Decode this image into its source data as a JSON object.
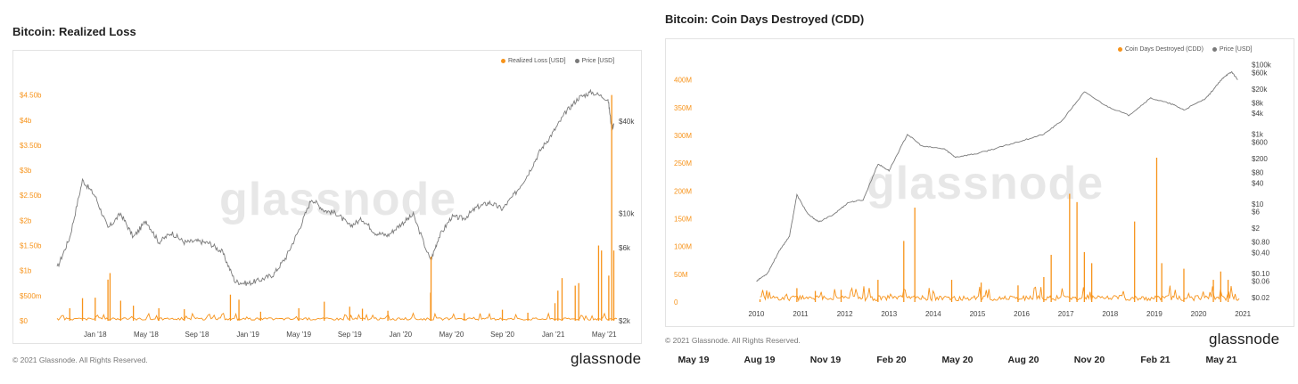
{
  "left": {
    "title": "Bitcoin: Realized Loss",
    "watermark": "glassnode",
    "copyright": "© 2021 Glassnode. All Rights Reserved.",
    "brand": "glassnode",
    "legend": [
      {
        "label": "Realized Loss [USD]",
        "color": "#f7931a"
      },
      {
        "label": "Price [USD]",
        "color": "#7a7a7a"
      }
    ]
  },
  "right": {
    "title": "Bitcoin: Coin Days Destroyed (CDD)",
    "watermark": "glassnode",
    "copyright": "© 2021 Glassnode. All Rights Reserved.",
    "brand": "glassnode",
    "legend": [
      {
        "label": "Coin Days Destroyed (CDD)",
        "color": "#f7931a"
      },
      {
        "label": "Price [USD]",
        "color": "#7a7a7a"
      }
    ]
  },
  "bottom_axis": [
    "May 19",
    "Aug 19",
    "Nov 19",
    "Feb 20",
    "May 20",
    "Aug 20",
    "Nov 20",
    "Feb 21",
    "May 21"
  ],
  "chart_data": [
    {
      "type": "line",
      "title": "Bitcoin: Realized Loss",
      "x_range": [
        "2017-10",
        "2021-06"
      ],
      "x_ticks": [
        "Jan '18",
        "May '18",
        "Sep '18",
        "Jan '19",
        "May '19",
        "Sep '19",
        "Jan '20",
        "May '20",
        "Sep '20",
        "Jan '21",
        "May '21"
      ],
      "y_left_ticks": [
        "$0",
        "$500m",
        "$1b",
        "$1.50b",
        "$2b",
        "$2.50b",
        "$3b",
        "$3.50b",
        "$4b",
        "$4.50b"
      ],
      "y_left_range": [
        0,
        4600000000.0
      ],
      "y_right_ticks": [
        "$2k",
        "$6k",
        "$10k",
        "$40k"
      ],
      "y_right_scale": "log",
      "y_right_range": [
        2000,
        64000
      ],
      "grid": false,
      "legend_position": "top-right",
      "series": [
        {
          "name": "Realized Loss [USD]",
          "color": "#f7931a",
          "axis": "left",
          "baseline": 40000000.0,
          "spikes": [
            {
              "date": "2017-11",
              "value": 250000000.0
            },
            {
              "date": "2017-12",
              "value": 450000000.0
            },
            {
              "date": "2018-01",
              "value": 460000000.0
            },
            {
              "date": "2018-02",
              "value": 820000000.0
            },
            {
              "date": "2018-02-06",
              "value": 950000000.0
            },
            {
              "date": "2018-03",
              "value": 400000000.0
            },
            {
              "date": "2018-04",
              "value": 300000000.0
            },
            {
              "date": "2018-06",
              "value": 250000000.0
            },
            {
              "date": "2018-08",
              "value": 230000000.0
            },
            {
              "date": "2018-11-20",
              "value": 520000000.0
            },
            {
              "date": "2018-12-10",
              "value": 420000000.0
            },
            {
              "date": "2019-02",
              "value": 180000000.0
            },
            {
              "date": "2019-05",
              "value": 250000000.0
            },
            {
              "date": "2019-07",
              "value": 380000000.0
            },
            {
              "date": "2019-09",
              "value": 280000000.0
            },
            {
              "date": "2019-10",
              "value": 240000000.0
            },
            {
              "date": "2019-12",
              "value": 200000000.0
            },
            {
              "date": "2020-03-12",
              "value": 560000000.0
            },
            {
              "date": "2020-03-13",
              "value": 1280000000.0
            },
            {
              "date": "2020-06",
              "value": 150000000.0
            },
            {
              "date": "2020-09",
              "value": 220000000.0
            },
            {
              "date": "2020-11",
              "value": 160000000.0
            },
            {
              "date": "2021-01-05",
              "value": 350000000.0
            },
            {
              "date": "2021-01-12",
              "value": 600000000.0
            },
            {
              "date": "2021-01-22",
              "value": 850000000.0
            },
            {
              "date": "2021-02-23",
              "value": 700000000.0
            },
            {
              "date": "2021-03",
              "value": 750000000.0
            },
            {
              "date": "2021-04-18",
              "value": 1500000000.0
            },
            {
              "date": "2021-04-25",
              "value": 1400000000.0
            },
            {
              "date": "2021-05-12",
              "value": 900000000.0
            },
            {
              "date": "2021-05-19",
              "value": 4500000000.0
            },
            {
              "date": "2021-05-24",
              "value": 1400000000.0
            }
          ]
        },
        {
          "name": "Price [USD]",
          "color": "#7a7a7a",
          "axis": "right",
          "points": [
            {
              "date": "2017-10",
              "value": 4400
            },
            {
              "date": "2017-11",
              "value": 7000
            },
            {
              "date": "2017-12",
              "value": 16500
            },
            {
              "date": "2018-01",
              "value": 13000
            },
            {
              "date": "2018-02",
              "value": 8000
            },
            {
              "date": "2018-03",
              "value": 10000
            },
            {
              "date": "2018-04",
              "value": 7000
            },
            {
              "date": "2018-05",
              "value": 9000
            },
            {
              "date": "2018-06",
              "value": 6500
            },
            {
              "date": "2018-07",
              "value": 7500
            },
            {
              "date": "2018-08",
              "value": 6500
            },
            {
              "date": "2018-09",
              "value": 6600
            },
            {
              "date": "2018-10",
              "value": 6400
            },
            {
              "date": "2018-11",
              "value": 5600
            },
            {
              "date": "2018-12",
              "value": 3600
            },
            {
              "date": "2019-01",
              "value": 3500
            },
            {
              "date": "2019-02",
              "value": 3700
            },
            {
              "date": "2019-03",
              "value": 4000
            },
            {
              "date": "2019-04",
              "value": 5200
            },
            {
              "date": "2019-05",
              "value": 7800
            },
            {
              "date": "2019-06",
              "value": 12500
            },
            {
              "date": "2019-07",
              "value": 10500
            },
            {
              "date": "2019-08",
              "value": 10000
            },
            {
              "date": "2019-09",
              "value": 8300
            },
            {
              "date": "2019-10",
              "value": 9200
            },
            {
              "date": "2019-11",
              "value": 7500
            },
            {
              "date": "2019-12",
              "value": 7200
            },
            {
              "date": "2020-01",
              "value": 8500
            },
            {
              "date": "2020-02",
              "value": 9800
            },
            {
              "date": "2020-03-12",
              "value": 4900
            },
            {
              "date": "2020-04",
              "value": 7000
            },
            {
              "date": "2020-05",
              "value": 9500
            },
            {
              "date": "2020-06",
              "value": 9300
            },
            {
              "date": "2020-07",
              "value": 11000
            },
            {
              "date": "2020-08",
              "value": 11800
            },
            {
              "date": "2020-09",
              "value": 10700
            },
            {
              "date": "2020-10",
              "value": 13500
            },
            {
              "date": "2020-11",
              "value": 18000
            },
            {
              "date": "2020-12",
              "value": 26000
            },
            {
              "date": "2021-01",
              "value": 34000
            },
            {
              "date": "2021-02",
              "value": 46000
            },
            {
              "date": "2021-03",
              "value": 57000
            },
            {
              "date": "2021-04",
              "value": 62000
            },
            {
              "date": "2021-05-10",
              "value": 56000
            },
            {
              "date": "2021-05-19",
              "value": 36000
            },
            {
              "date": "2021-05-24",
              "value": 38000
            }
          ]
        }
      ]
    },
    {
      "type": "line",
      "title": "Bitcoin: Coin Days Destroyed (CDD)",
      "x_range": [
        "2009",
        "2021-06"
      ],
      "x_ticks": [
        "2010",
        "2011",
        "2012",
        "2013",
        "2014",
        "2015",
        "2016",
        "2017",
        "2018",
        "2019",
        "2020",
        "2021"
      ],
      "y_left_ticks": [
        "0",
        "50M",
        "100M",
        "150M",
        "200M",
        "250M",
        "300M",
        "350M",
        "400M"
      ],
      "y_left_range": [
        0,
        430000000
      ],
      "y_right_ticks": [
        "$0.02",
        "$0.06",
        "$0.10",
        "$0.40",
        "$0.80",
        "$2",
        "$6",
        "$10",
        "$40",
        "$80",
        "$200",
        "$600",
        "$1k",
        "$4k",
        "$8k",
        "$20k",
        "$60k",
        "$100k"
      ],
      "y_right_scale": "log",
      "y_right_range": [
        0.015,
        110000
      ],
      "grid": false,
      "legend_position": "top-right",
      "series": [
        {
          "name": "Coin Days Destroyed (CDD)",
          "color": "#f7931a",
          "axis": "left",
          "baseline": 8000000,
          "spikes": [
            {
              "date": "2010-08",
              "value": 5000000
            },
            {
              "date": "2011-06",
              "value": 25000000
            },
            {
              "date": "2011-11",
              "value": 20000000
            },
            {
              "date": "2012-06",
              "value": 22000000
            },
            {
              "date": "2013-04",
              "value": 40000000
            },
            {
              "date": "2013-11",
              "value": 110000000
            },
            {
              "date": "2014-02",
              "value": 170000000
            },
            {
              "date": "2014-12",
              "value": 40000000
            },
            {
              "date": "2015-08",
              "value": 35000000
            },
            {
              "date": "2016-06",
              "value": 30000000
            },
            {
              "date": "2017-01",
              "value": 45000000
            },
            {
              "date": "2017-03",
              "value": 85000000
            },
            {
              "date": "2017-08-01",
              "value": 195000000
            },
            {
              "date": "2017-10",
              "value": 180000000
            },
            {
              "date": "2017-12",
              "value": 90000000
            },
            {
              "date": "2018-02",
              "value": 70000000
            },
            {
              "date": "2019-01-20",
              "value": 145000000
            },
            {
              "date": "2019-07-20",
              "value": 260000000
            },
            {
              "date": "2019-09",
              "value": 70000000
            },
            {
              "date": "2020-03",
              "value": 60000000
            },
            {
              "date": "2020-11",
              "value": 40000000
            },
            {
              "date": "2021-01",
              "value": 55000000
            },
            {
              "date": "2021-03",
              "value": 40000000
            }
          ]
        },
        {
          "name": "Price [USD]",
          "color": "#7a7a7a",
          "axis": "right",
          "points": [
            {
              "date": "2010-07",
              "value": 0.06
            },
            {
              "date": "2010-10",
              "value": 0.1
            },
            {
              "date": "2011-01",
              "value": 0.4
            },
            {
              "date": "2011-04",
              "value": 1.2
            },
            {
              "date": "2011-06",
              "value": 18
            },
            {
              "date": "2011-09",
              "value": 5
            },
            {
              "date": "2011-12",
              "value": 3
            },
            {
              "date": "2012-04",
              "value": 5
            },
            {
              "date": "2012-08",
              "value": 11
            },
            {
              "date": "2012-12",
              "value": 13
            },
            {
              "date": "2013-04",
              "value": 140
            },
            {
              "date": "2013-07",
              "value": 90
            },
            {
              "date": "2013-12",
              "value": 1000
            },
            {
              "date": "2014-04",
              "value": 450
            },
            {
              "date": "2014-10",
              "value": 380
            },
            {
              "date": "2015-01",
              "value": 220
            },
            {
              "date": "2015-07",
              "value": 280
            },
            {
              "date": "2016-01",
              "value": 420
            },
            {
              "date": "2016-07",
              "value": 650
            },
            {
              "date": "2017-01",
              "value": 1000
            },
            {
              "date": "2017-06",
              "value": 2500
            },
            {
              "date": "2017-12",
              "value": 16500
            },
            {
              "date": "2018-06",
              "value": 6500
            },
            {
              "date": "2018-12",
              "value": 3500
            },
            {
              "date": "2019-06",
              "value": 11000
            },
            {
              "date": "2019-12",
              "value": 7200
            },
            {
              "date": "2020-03",
              "value": 5000
            },
            {
              "date": "2020-09",
              "value": 10700
            },
            {
              "date": "2020-12",
              "value": 26000
            },
            {
              "date": "2021-02",
              "value": 46000
            },
            {
              "date": "2021-04",
              "value": 62000
            },
            {
              "date": "2021-05-20",
              "value": 37000
            }
          ]
        }
      ]
    }
  ]
}
